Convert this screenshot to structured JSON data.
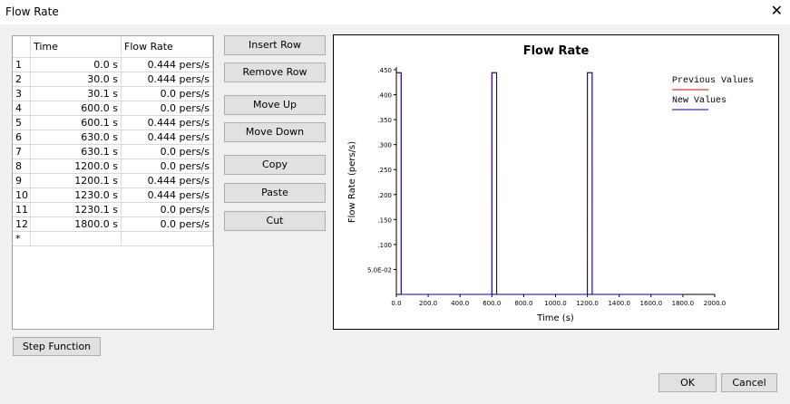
{
  "window": {
    "title": "Flow Rate"
  },
  "table": {
    "columns": [
      "Time",
      "Flow Rate"
    ],
    "rows": [
      [
        "1",
        "0.0 s",
        "0.444 pers/s"
      ],
      [
        "2",
        "30.0 s",
        "0.444 pers/s"
      ],
      [
        "3",
        "30.1 s",
        "0.0 pers/s"
      ],
      [
        "4",
        "600.0 s",
        "0.0 pers/s"
      ],
      [
        "5",
        "600.1 s",
        "0.444 pers/s"
      ],
      [
        "6",
        "630.0 s",
        "0.444 pers/s"
      ],
      [
        "7",
        "630.1 s",
        "0.0 pers/s"
      ],
      [
        "8",
        "1200.0 s",
        "0.0 pers/s"
      ],
      [
        "9",
        "1200.1 s",
        "0.444 pers/s"
      ],
      [
        "10",
        "1230.0 s",
        "0.444 pers/s"
      ],
      [
        "11",
        "1230.1 s",
        "0.0 pers/s"
      ],
      [
        "12",
        "1800.0 s",
        "0.0 pers/s"
      ]
    ],
    "new_row_marker": "*"
  },
  "buttons": [
    "Insert Row",
    "Remove Row",
    "Move Up",
    "Move Down",
    "Copy",
    "Paste",
    "Cut"
  ],
  "step_button": "Step Function",
  "footer_buttons": [
    "OK",
    "Cancel"
  ],
  "chart_data": {
    "type": "line",
    "title": "Flow Rate",
    "x_label": "Time (s)",
    "y_label": "Flow Rate (pers/s)",
    "x": [
      0,
      30,
      30.1,
      600,
      600.1,
      630,
      630.1,
      1200,
      1200.1,
      1230,
      1230.1,
      1800
    ],
    "series": [
      {
        "name": "Previous Values",
        "color": "#e00000",
        "values": [
          0.444,
          0.444,
          0,
          0,
          0.444,
          0.444,
          0,
          0,
          0.444,
          0.444,
          0,
          0
        ]
      },
      {
        "name": "New Values",
        "color": "#0000c0",
        "values": [
          0.444,
          0.444,
          0,
          0,
          0.444,
          0.444,
          0,
          0,
          0.444,
          0.444,
          0,
          0
        ]
      }
    ],
    "xlim": [
      0,
      2000
    ],
    "ylim": [
      0,
      0.45
    ],
    "xticks": [
      {
        "value": 0,
        "label": "0.0"
      },
      {
        "value": 200,
        "label": "200.0"
      },
      {
        "value": 400,
        "label": "400.0"
      },
      {
        "value": 600,
        "label": "600.0"
      },
      {
        "value": 800,
        "label": "800.0"
      },
      {
        "value": 1000,
        "label": "1000.0"
      },
      {
        "value": 1200,
        "label": "1200.0"
      },
      {
        "value": 1400,
        "label": "1400.0"
      },
      {
        "value": 1600,
        "label": "1600.0"
      },
      {
        "value": 1800,
        "label": "1800.0"
      },
      {
        "value": 2000,
        "label": "2000.0"
      }
    ],
    "yticks": [
      {
        "value": 0.45,
        "label": ".450"
      },
      {
        "value": 0.4,
        "label": ".400"
      },
      {
        "value": 0.35,
        "label": ".350"
      },
      {
        "value": 0.3,
        "label": ".300"
      },
      {
        "value": 0.25,
        "label": ".250"
      },
      {
        "value": 0.2,
        "label": ".200"
      },
      {
        "value": 0.15,
        "label": ".150"
      },
      {
        "value": 0.1,
        "label": ".100"
      },
      {
        "value": 0.05,
        "label": "5.0E-02"
      }
    ],
    "legend": "top-right"
  }
}
